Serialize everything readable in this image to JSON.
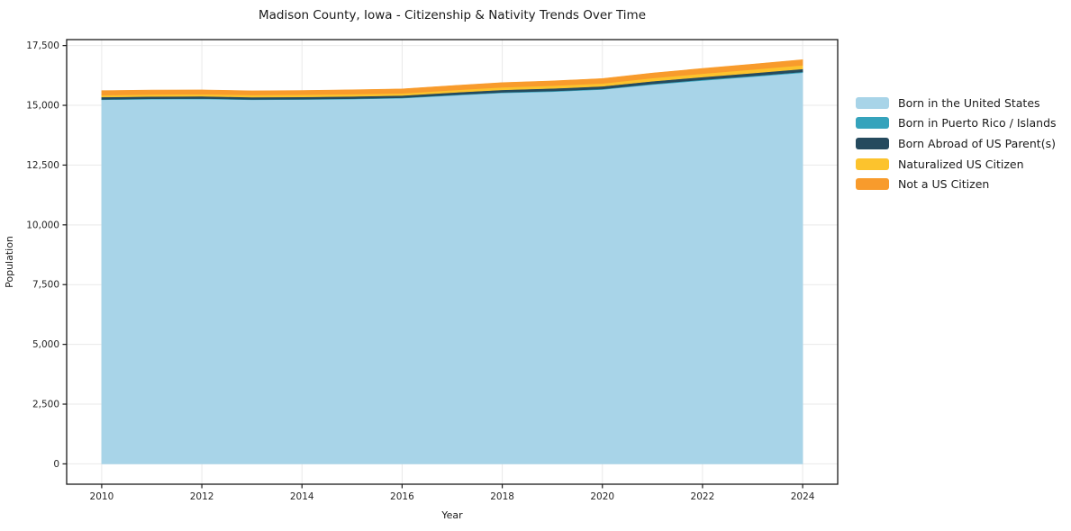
{
  "figure": {
    "title": "Madison County, Iowa - Citizenship & Nativity Trends Over Time",
    "background_color": "#ffffff"
  },
  "chart_data": {
    "type": "area",
    "stacked": true,
    "title": "Madison County, Iowa - Citizenship & Nativity Trends Over Time",
    "xlabel": "Year",
    "ylabel": "Population",
    "x": [
      2010,
      2011,
      2012,
      2013,
      2014,
      2015,
      2016,
      2017,
      2018,
      2019,
      2020,
      2021,
      2022,
      2023,
      2024
    ],
    "series": [
      {
        "name": "Born in the United States",
        "color": "#A8D4E8",
        "values": [
          15235,
          15258,
          15268,
          15232,
          15242,
          15262,
          15300,
          15415,
          15520,
          15575,
          15660,
          15870,
          16040,
          16200,
          16365
        ]
      },
      {
        "name": "Born in Puerto Rico / Islands",
        "color": "#35A3BC",
        "values": [
          15,
          17,
          19,
          16,
          14,
          17,
          20,
          22,
          24,
          25,
          27,
          29,
          31,
          33,
          36
        ]
      },
      {
        "name": "Born Abroad of US Parent(s)",
        "color": "#254A5E",
        "values": [
          95,
          93,
          91,
          94,
          96,
          95,
          93,
          99,
          104,
          107,
          110,
          112,
          115,
          118,
          122
        ]
      },
      {
        "name": "Naturalized US Citizen",
        "color": "#FCC32D",
        "values": [
          82,
          86,
          89,
          90,
          92,
          94,
          91,
          99,
          108,
          114,
          120,
          129,
          138,
          147,
          155
        ]
      },
      {
        "name": "Not a US Citizen",
        "color": "#F89B2C",
        "values": [
          188,
          184,
          179,
          176,
          178,
          181,
          185,
          190,
          195,
          200,
          205,
          211,
          217,
          224,
          231
        ]
      }
    ],
    "stack_totals": [
      15615,
      15638,
      15646,
      15608,
      15622,
      15649,
      15689,
      15825,
      15951,
      16021,
      16122,
      16351,
      16541,
      16722,
      16909
    ],
    "xlim": [
      2009.3,
      2024.7
    ],
    "ylim": [
      -850,
      17750
    ],
    "xticks": [
      2010,
      2012,
      2014,
      2016,
      2018,
      2020,
      2022,
      2024
    ],
    "xtick_labels": [
      "2010",
      "2012",
      "2014",
      "2016",
      "2018",
      "2020",
      "2022",
      "2024"
    ],
    "yticks": [
      0,
      2500,
      5000,
      7500,
      10000,
      12500,
      15000,
      17500
    ],
    "ytick_labels": [
      "0",
      "2,500",
      "5,000",
      "7,500",
      "10,000",
      "12,500",
      "15,000",
      "17,500"
    ],
    "grid": true,
    "legend_position": "right-outside"
  },
  "style": {
    "grid_color": "#e9e9e9",
    "spine_color": "#1a1a1a",
    "tick_color": "#1a1a1a",
    "tick_label_color": "#262626",
    "text_color": "#1a1a1a"
  }
}
